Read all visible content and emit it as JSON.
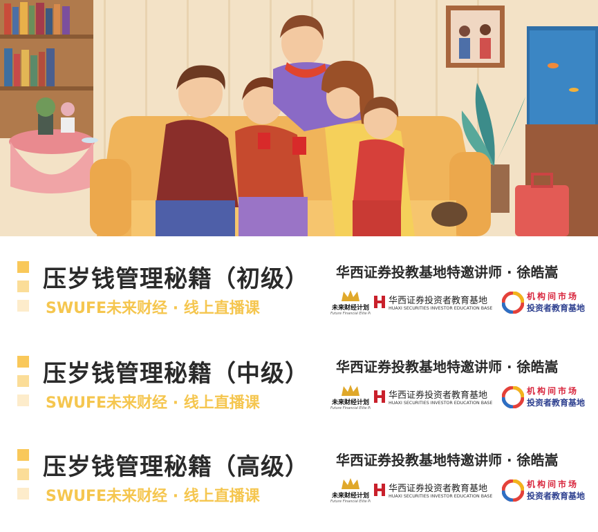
{
  "courses": [
    {
      "title": "压岁钱管理秘籍（初级）",
      "subtitle": "SWUFE未来财经 · 线上直播课",
      "teacher": "华西证券投教基地特邀讲师 · 徐皓嵩"
    },
    {
      "title": "压岁钱管理秘籍（中级）",
      "subtitle": "SWUFE未来财经 · 线上直播课",
      "teacher": "华西证券投教基地特邀讲师 · 徐皓嵩"
    },
    {
      "title": "压岁钱管理秘籍（高级）",
      "subtitle": "SWUFE未来财经 · 线上直播课",
      "teacher": "华西证券投教基地特邀讲师 · 徐皓嵩"
    }
  ],
  "logos": {
    "swufe_name": "未来财经计划",
    "swufe_slogan": "Future Financial Elite Plan",
    "huaxi_cn": "华西证券投资者教育基地",
    "huaxi_en": "HUAXI SECURITIES INVESTOR EDUCATION BASE",
    "inst_line1": "机构间市场",
    "inst_line2": "投资者教育基地"
  },
  "colors": {
    "accent_yellow": "#f5c64f",
    "title_dark": "#2a2a2a",
    "huaxi_red": "#c9202b",
    "inst_red": "#d8263d",
    "inst_blue": "#2d3f8f"
  }
}
